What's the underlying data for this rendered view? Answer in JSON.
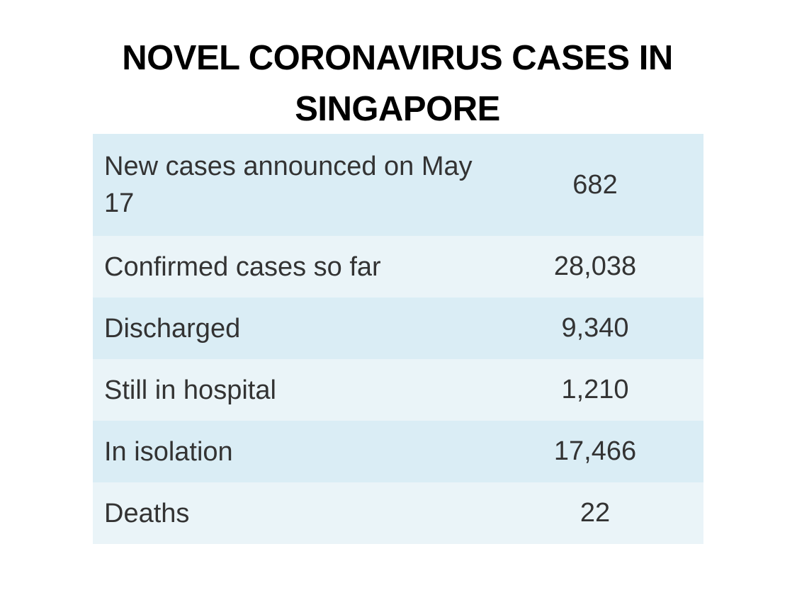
{
  "title": "NOVEL CORONAVIRUS CASES IN SINGAPORE",
  "rows": [
    {
      "label": "New cases announced on May 17",
      "value": "682"
    },
    {
      "label": "Confirmed cases so far",
      "value": "28,038"
    },
    {
      "label": "Discharged",
      "value": "9,340"
    },
    {
      "label": "Still in hospital",
      "value": "1,210"
    },
    {
      "label": "In isolation",
      "value": "17,466"
    },
    {
      "label": "Deaths",
      "value": "22"
    }
  ],
  "colors": {
    "row_odd": "#daedf5",
    "row_even": "#eaf4f8",
    "title": "#000000",
    "text": "#333333"
  }
}
